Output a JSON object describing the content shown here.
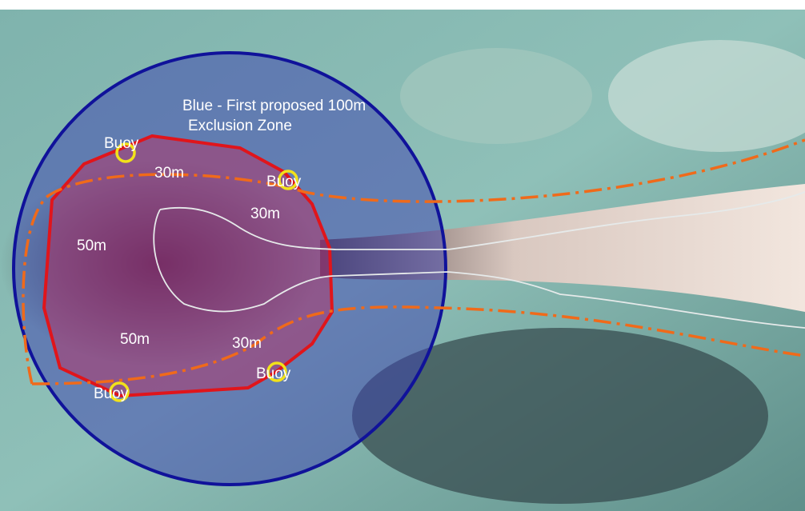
{
  "map": {
    "title_lines": [
      "Blue - First proposed 100m",
      "Exclusion Zone"
    ],
    "labels": [
      "Buoy",
      "Buoy",
      "Buoy",
      "Buoy",
      "30m",
      "30m",
      "30m",
      "50m",
      "50m"
    ]
  }
}
